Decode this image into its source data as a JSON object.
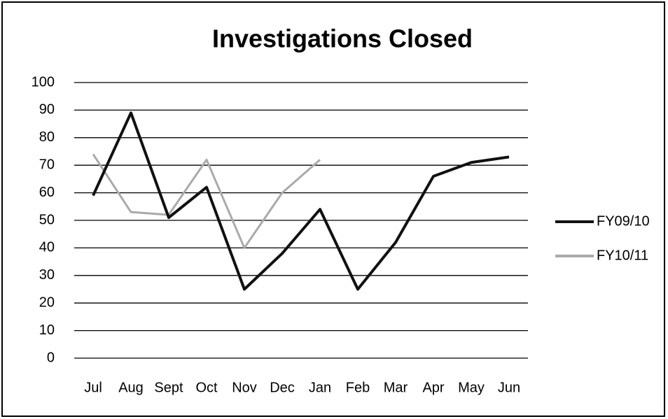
{
  "chart_data": {
    "type": "line",
    "title": "Investigations Closed",
    "categories": [
      "Jul",
      "Aug",
      "Sept",
      "Oct",
      "Nov",
      "Dec",
      "Jan",
      "Feb",
      "Mar",
      "Apr",
      "May",
      "Jun"
    ],
    "series": [
      {
        "name": "FY09/10",
        "color": "#111111",
        "values": [
          59,
          89,
          51,
          62,
          25,
          38,
          54,
          25,
          42,
          66,
          71,
          73
        ]
      },
      {
        "name": "FY10/11",
        "color": "#aaaaaa",
        "values": [
          74,
          53,
          52,
          72,
          40,
          60,
          72,
          null,
          null,
          null,
          null,
          null
        ]
      }
    ],
    "ylim": [
      0,
      100
    ],
    "yticks": [
      0,
      10,
      20,
      30,
      40,
      50,
      60,
      70,
      80,
      90,
      100
    ],
    "grid": true,
    "legend": "right"
  }
}
